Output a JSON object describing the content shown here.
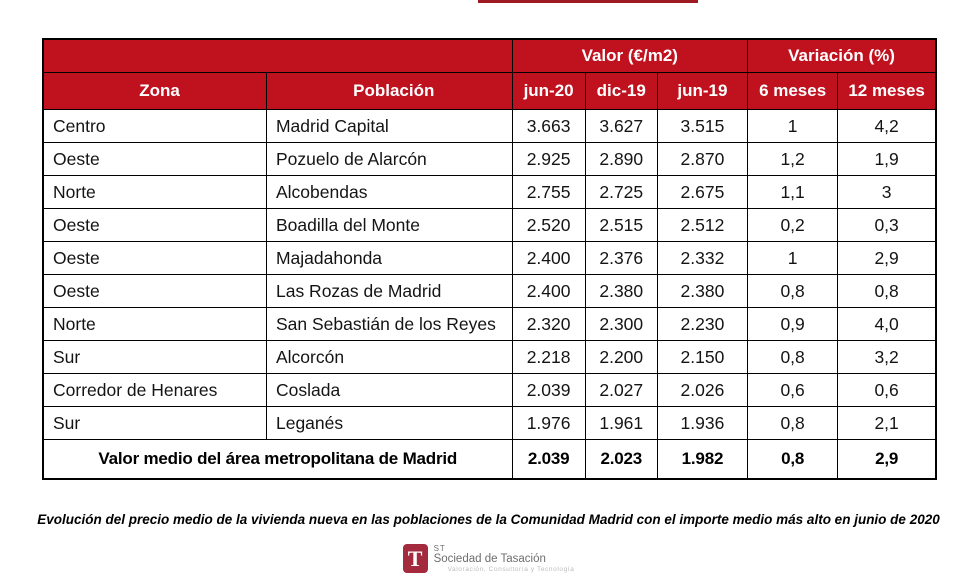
{
  "chart_data": {
    "type": "table",
    "column_groups": [
      {
        "label": "Valor (€/m2)",
        "span": 3
      },
      {
        "label": "Variación (%)",
        "span": 2
      }
    ],
    "columns": [
      "Zona",
      "Población",
      "jun-20",
      "dic-19",
      "jun-19",
      "6 meses",
      "12 meses"
    ],
    "rows": [
      [
        "Centro",
        "Madrid Capital",
        "3.663",
        "3.627",
        "3.515",
        "1",
        "4,2"
      ],
      [
        "Oeste",
        "Pozuelo de Alarcón",
        "2.925",
        "2.890",
        "2.870",
        "1,2",
        "1,9"
      ],
      [
        "Norte",
        "Alcobendas",
        "2.755",
        "2.725",
        "2.675",
        "1,1",
        "3"
      ],
      [
        "Oeste",
        "Boadilla del Monte",
        "2.520",
        "2.515",
        "2.512",
        "0,2",
        "0,3"
      ],
      [
        "Oeste",
        "Majadahonda",
        "2.400",
        "2.376",
        "2.332",
        "1",
        "2,9"
      ],
      [
        "Oeste",
        "Las Rozas de Madrid",
        "2.400",
        "2.380",
        "2.380",
        "0,8",
        "0,8"
      ],
      [
        "Norte",
        "San Sebastián de los Reyes",
        "2.320",
        "2.300",
        "2.230",
        "0,9",
        "4,0"
      ],
      [
        "Sur",
        "Alcorcón",
        "2.218",
        "2.200",
        "2.150",
        "0,8",
        "3,2"
      ],
      [
        "Corredor de Henares",
        "Coslada",
        "2.039",
        "2.027",
        "2.026",
        "0,6",
        "0,6"
      ],
      [
        "Sur",
        "Leganés",
        "1.976",
        "1.961",
        "1.936",
        "0,8",
        "2,1"
      ]
    ],
    "footer": {
      "label": "Valor medio del área metropolitana de Madrid",
      "values": [
        "2.039",
        "2.023",
        "1.982",
        "0,8",
        "2,9"
      ]
    },
    "title": "",
    "layout": {
      "grid": true,
      "header_position": "top"
    }
  },
  "caption": "Evolución del precio medio de la vivienda nueva en las poblaciones de la Comunidad Madrid con el importe medio más alto en junio de 2020",
  "logo": {
    "mark_letter": "T",
    "st": "ST",
    "name": "Sociedad de Tasación",
    "tagline": "Valoración, Consultoría y Tecnología"
  },
  "colors": {
    "header_bg": "#c0111f",
    "logo_red": "#a42a3e",
    "top_rule": "#9e1a22",
    "border": "#000000"
  }
}
